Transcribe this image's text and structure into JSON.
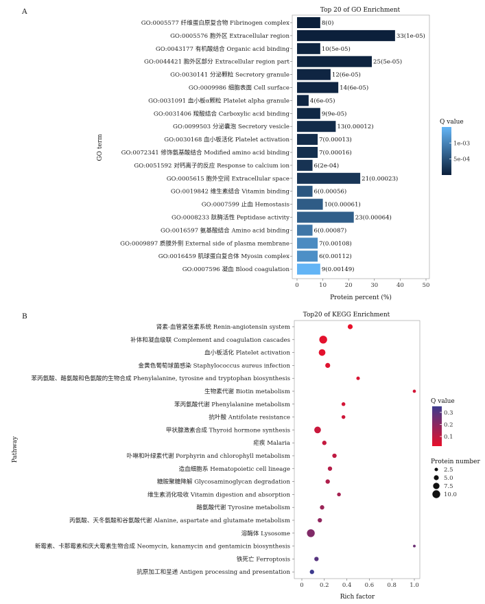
{
  "panel_labels": [
    "A",
    "B"
  ],
  "chart_data": [
    {
      "type": "bar",
      "orientation": "horizontal",
      "title": "Top 20 of GO Enrichment",
      "xlabel": "Protein percent (%)",
      "ylabel": "GO term",
      "xlim": [
        0,
        50
      ],
      "xticks": [
        0,
        10,
        20,
        30,
        40,
        50
      ],
      "grid": false,
      "legend": {
        "title": "Q value",
        "placement": "right",
        "ticks": [
          {
            "label": "1e-03",
            "value": 0.001
          },
          {
            "label": "5e-04",
            "value": 0.0005
          }
        ],
        "color_low": "#0b1f3a",
        "color_high": "#64b5f6",
        "range": [
          0,
          0.0015
        ]
      },
      "categories": [
        "GO:0005577 纤维蛋白原复合物 Fibrinogen complex",
        "GO:0005576 胞外区 Extracellular region",
        "GO:0043177 有机酸结合 Organic acid binding",
        "GO:0044421 胞外区部分 Extracellular region part",
        "GO:0030141 分泌颗粒 Secretory granule",
        "GO:0009986 细胞表面 Cell surface",
        "GO:0031091 血小板α颗粒 Platelet alpha granule",
        "GO:0031406 羧酸结合 Carboxylic acid binding",
        "GO:0099503 分泌囊泡 Secretory vesicle",
        "GO:0030168 血小板活化 Platelet activation",
        "GO:0072341 修饰氨基酸结合 Modified amino acid binding",
        "GO:0051592 对钙离子的反应 Response to calcium ion",
        "GO:0005615 胞外空间 Extracellular space",
        "GO:0019842 维生素结合 Vitamin binding",
        "GO:0007599 止血 Hemostasis",
        "GO:0008233 肽酶活性 Peptidase activity",
        "GO:0016597 氨基酸结合 Amino acid binding",
        "GO:0009897 质膜外侧 External side of plasma membrane",
        "GO:0016459 肌球蛋白复合体 Myosin complex",
        "GO:0007596 凝血 Blood coagulation"
      ],
      "values": [
        9,
        38,
        9,
        29,
        13,
        16,
        4.5,
        9,
        15,
        8,
        8,
        6,
        24.5,
        6,
        10,
        22,
        6,
        8,
        8,
        9
      ],
      "qvalues": [
        0,
        1e-05,
        5e-05,
        5e-05,
        6e-05,
        6e-05,
        6e-05,
        9e-05,
        0.00012,
        0.00013,
        0.00016,
        0.0002,
        0.00023,
        0.00056,
        0.00061,
        0.00064,
        0.00087,
        0.00108,
        0.00112,
        0.00149
      ],
      "data_labels": [
        "8(0)",
        "33(1e-05)",
        "10(5e-05)",
        "25(5e-05)",
        "12(6e-05)",
        "14(6e-05)",
        "4(6e-05)",
        "9(9e-05)",
        "13(0.00012)",
        "7(0.00013)",
        "7(0.00016)",
        "6(2e-04)",
        "21(0.00023)",
        "6(0.00056)",
        "10(0.00061)",
        "23(0.00064)",
        "6(0.00087)",
        "7(0.00108)",
        "6(0.00112)",
        "9(0.00149)"
      ]
    },
    {
      "type": "scatter",
      "title": "Top20 of KEGG Enrichment",
      "xlabel": "Rich factor",
      "ylabel": "Pathway",
      "xlim": [
        0,
        1
      ],
      "xticks": [
        "0",
        "0.2",
        "0.4",
        "0.6",
        "0.8",
        "1.0"
      ],
      "grid": false,
      "legend_color": {
        "title": "Q value",
        "placement": "right",
        "ticks": [
          "0.3",
          "0.2",
          "0.1"
        ],
        "range": [
          0.02,
          0.35
        ],
        "color_low": "#e8102a",
        "color_high": "#3d3b8e"
      },
      "legend_size": {
        "title": "Protein number",
        "placement": "right",
        "entries": [
          "2.5",
          "5.0",
          "7.5",
          "10.0"
        ]
      },
      "categories": [
        "肾素-血管紧张素系统 Renin-angiotensin system",
        "补体和凝血级联 Complement and coagulation cascades",
        "血小板活化 Platelet activation",
        "金黄色葡萄球菌感染 Staphylococcus aureus infection",
        "苯丙氨酸、酪氨酸和色氨酸的生物合成 Phenylalanine, tyrosine and tryptophan biosynthesis",
        "生物素代谢 Biotin metabolism",
        "苯丙氨酸代谢 Phenylalanine metabolism",
        "抗叶酸 Antifolate resistance",
        "甲状腺激素合成 Thyroid hormone synthesis",
        "疟疾 Malaria",
        "卟啉和叶绿素代谢 Porphyrin and chlorophyll metabolism",
        "造血细胞系 Hematopoietic cell lineage",
        "糖胺聚糖降解 Glycosaminoglycan degradation",
        "维生素消化吸收 Vitamin digestion and absorption",
        "酪氨酸代谢 Tyrosine metabolism",
        "丙氨酸、天冬氨酸和谷氨酸代谢 Alanine, aspartate and glutamate metabolism",
        "溶酶体 Lysosome",
        "新霉素、卡那霉素和庆大霉素生物合成 Neomycin, kanamycin and gentamicin biosynthesis",
        "铁死亡 Ferroptosis",
        "抗原加工和呈递 Antigen processing and presentation"
      ],
      "x": [
        0.43,
        0.19,
        0.18,
        0.23,
        0.5,
        1.0,
        0.37,
        0.37,
        0.14,
        0.2,
        0.29,
        0.25,
        0.23,
        0.33,
        0.18,
        0.16,
        0.08,
        1.0,
        0.13,
        0.09
      ],
      "size": [
        5,
        10,
        8,
        5,
        2.5,
        2,
        3,
        3,
        8,
        4,
        4,
        4,
        4,
        3,
        4,
        4,
        10,
        1,
        4,
        4
      ],
      "q": [
        0.02,
        0.03,
        0.03,
        0.04,
        0.05,
        0.06,
        0.06,
        0.07,
        0.08,
        0.09,
        0.1,
        0.12,
        0.13,
        0.15,
        0.17,
        0.19,
        0.22,
        0.26,
        0.3,
        0.35
      ]
    }
  ]
}
